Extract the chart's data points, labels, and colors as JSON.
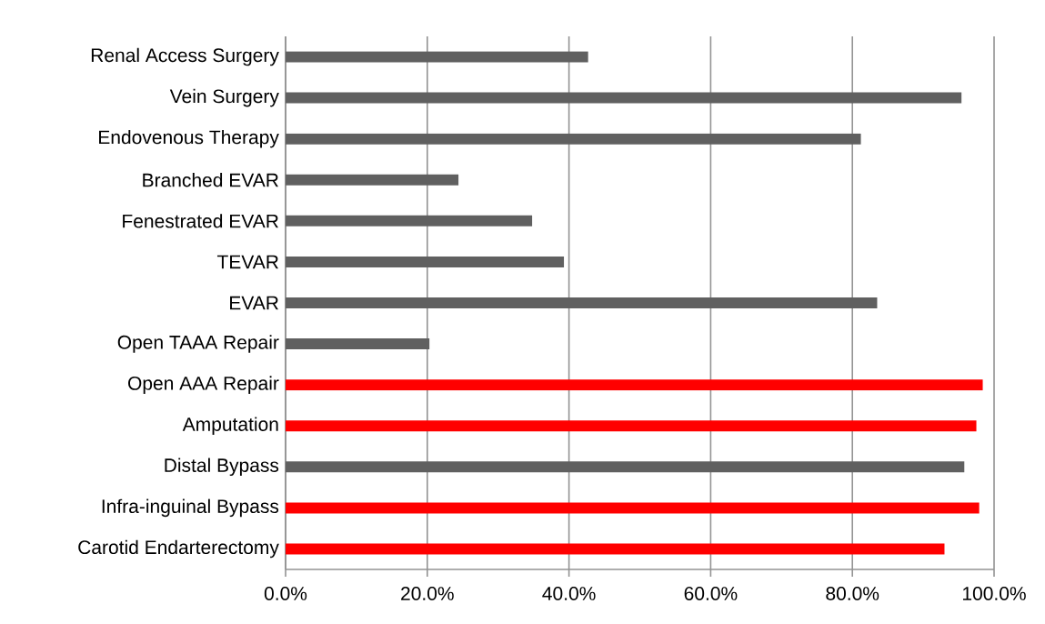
{
  "chart_data": {
    "type": "bar",
    "orientation": "horizontal",
    "categories": [
      "Renal Access Surgery",
      "Vein Surgery",
      "Endovenous Therapy",
      "Branched EVAR",
      "Fenestrated EVAR",
      "TEVAR",
      "EVAR",
      "Open TAAA Repair",
      "Open AAA Repair",
      "Amputation",
      "Distal Bypass",
      "Infra-inguinal Bypass",
      "Carotid Endarterectomy"
    ],
    "values": [
      42.7,
      95.4,
      81.2,
      24.4,
      34.8,
      39.3,
      83.5,
      20.3,
      98.4,
      97.5,
      95.8,
      97.9,
      93.0
    ],
    "colors": [
      "#606060",
      "#606060",
      "#606060",
      "#606060",
      "#606060",
      "#606060",
      "#606060",
      "#606060",
      "#ff0000",
      "#ff0000",
      "#606060",
      "#ff0000",
      "#ff0000"
    ],
    "xlim": [
      0,
      100
    ],
    "xticks": [
      {
        "value": 0,
        "label": "0.0%"
      },
      {
        "value": 20,
        "label": "20.0%"
      },
      {
        "value": 40,
        "label": "40.0%"
      },
      {
        "value": 60,
        "label": "60.0%"
      },
      {
        "value": 80,
        "label": "80.0%"
      },
      {
        "value": 100,
        "label": "100.0%"
      }
    ],
    "grid": "x"
  }
}
